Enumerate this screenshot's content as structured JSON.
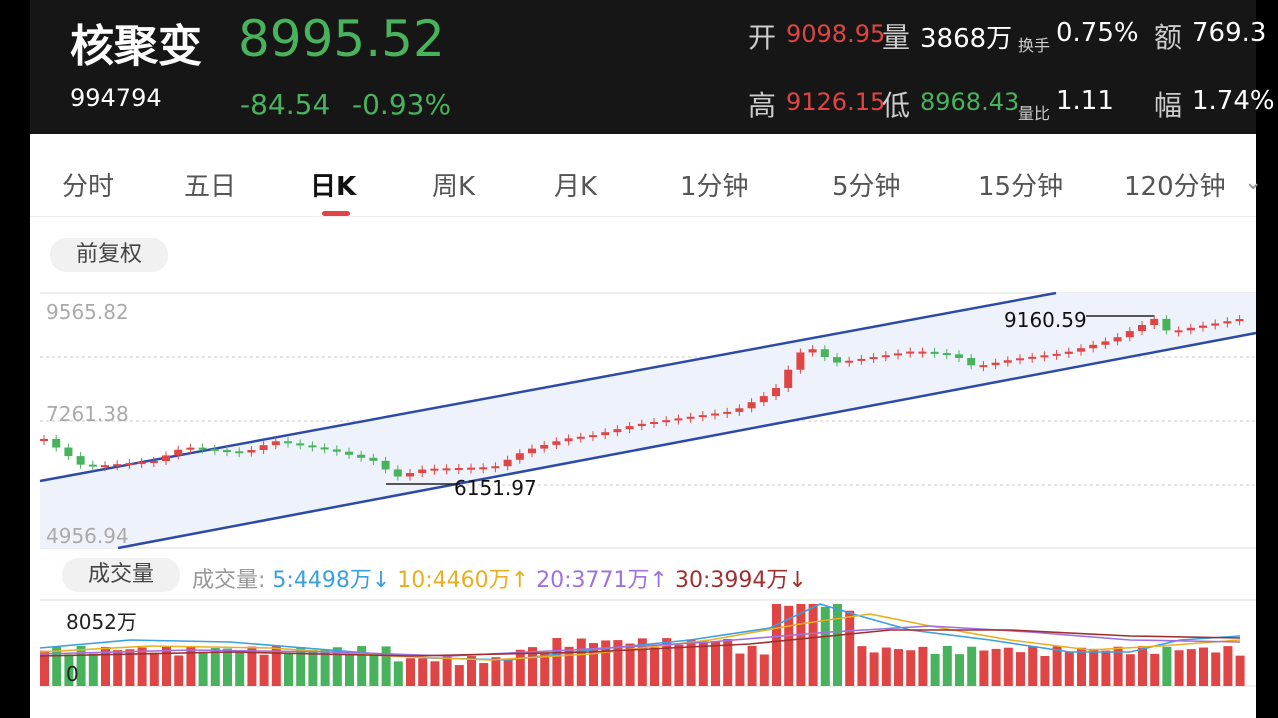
{
  "header": {
    "name": "核聚变",
    "code": "994794",
    "price": "8995.52",
    "change": "-84.54",
    "change_pct": "-0.93%",
    "open_label": "开",
    "open": "9098.95",
    "volume_label": "量",
    "volume": "3868万",
    "turnover_label": "换手",
    "turnover": "0.75%",
    "amount_label": "额",
    "amount": "769.3",
    "high_label": "高",
    "high": "9126.15",
    "low_label": "低",
    "low": "8968.43",
    "vol_ratio_label": "量比",
    "vol_ratio": "1.11",
    "amplitude_label": "幅",
    "amplitude": "1.74%"
  },
  "tabs": [
    {
      "label": "分时"
    },
    {
      "label": "五日"
    },
    {
      "label": "日K",
      "active": true
    },
    {
      "label": "周K"
    },
    {
      "label": "月K"
    },
    {
      "label": "1分钟"
    },
    {
      "label": "5分钟"
    },
    {
      "label": "15分钟"
    },
    {
      "label": "120分钟"
    }
  ],
  "adjust_label": "前复权",
  "price_axis": {
    "top": "9565.82",
    "mid": "7261.38",
    "bottom": "4956.94"
  },
  "annotations": {
    "high_mark": "9160.59",
    "low_mark": "6151.97"
  },
  "volume": {
    "pill_label": "成交量",
    "legend_prefix": "成交量:",
    "ma5": "5:4498万↓",
    "ma10": "10:4460万↑",
    "ma20": "20:3771万↑",
    "ma30": "30:3994万↓",
    "max_label": "8052万",
    "zero_label": "0"
  },
  "colors": {
    "up": "#e04545",
    "down": "#49b25c",
    "channel": "#2d4aa8",
    "ma5": "#3aa0e0",
    "ma10": "#e8b020",
    "ma20": "#a070e0",
    "ma30": "#a03030"
  }
}
